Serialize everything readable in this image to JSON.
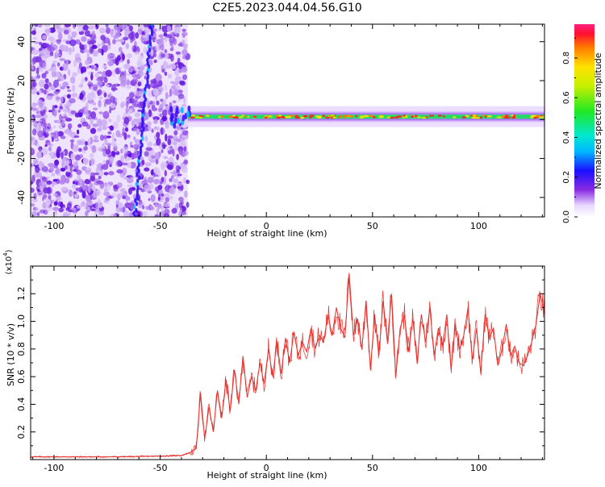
{
  "title": "C2E5.2023.044.04.56.G10",
  "top_chart": {
    "xlabel": "Height of straight line (km)",
    "ylabel": "Frequency (Hz)",
    "xticks": [
      "-100",
      "-50",
      "0",
      "50",
      "100"
    ],
    "yticks": [
      "40",
      "20",
      "0",
      "-20",
      "-40"
    ],
    "colorbar_label": "Normalized spectral amplitude",
    "colorbar_ticks": [
      "0.0",
      "0.2",
      "0.4",
      "0.6",
      "0.8"
    ]
  },
  "bottom_chart": {
    "xlabel": "Height of straight line (km)",
    "ylabel": "SNR (10 * v/v)",
    "multiplier": "(x10",
    "multiplier_exp": "4",
    "multiplier_close": ")",
    "xticks": [
      "-100",
      "-50",
      "0",
      "50",
      "100"
    ],
    "yticks": [
      "1.2",
      "1.0",
      "0.8",
      "0.6",
      "0.4",
      "0.2"
    ]
  },
  "chart_data": [
    {
      "type": "heatmap",
      "title": "C2E5.2023.044.04.56.G10",
      "xlabel": "Height of straight line (km)",
      "ylabel": "Frequency (Hz)",
      "xlim": [
        -111,
        131
      ],
      "ylim": [
        -50,
        49
      ],
      "colorbar": {
        "label": "Normalized spectral amplitude",
        "range": [
          0.0,
          0.97
        ]
      },
      "description_points": {
        "noise_region_x": [
          -111,
          -37
        ],
        "band_x": [
          -37,
          131
        ],
        "band_center_freq_hz": 1.5,
        "band_halfwidth_hz": 3
      }
    },
    {
      "type": "line",
      "xlabel": "Height of straight line (km)",
      "ylabel": "SNR (10 * v/v)",
      "xlim": [
        -111,
        131
      ],
      "ylim": [
        0,
        1.4
      ],
      "y_scale_note": "x10^4",
      "series": [
        {
          "color": "#e8302c",
          "x": [
            -111,
            -90,
            -70,
            -50,
            -40,
            -36,
            -33,
            -31,
            -29,
            -27,
            -25,
            -23,
            -21,
            -19,
            -17,
            -15,
            -13,
            -11,
            -9,
            -7,
            -5,
            -3,
            -1,
            1,
            3,
            5,
            7,
            9,
            11,
            13,
            15,
            17,
            19,
            21,
            23,
            25,
            27,
            29,
            31,
            33,
            35,
            37,
            39,
            41,
            43,
            45,
            47,
            49,
            51,
            53,
            55,
            57,
            59,
            61,
            63,
            65,
            67,
            69,
            71,
            73,
            75,
            77,
            79,
            81,
            83,
            85,
            87,
            89,
            91,
            93,
            95,
            97,
            99,
            101,
            103,
            105,
            107,
            109,
            111,
            113,
            115,
            117,
            119,
            121,
            123,
            125,
            127,
            129,
            131
          ],
          "values": [
            0.02,
            0.02,
            0.02,
            0.025,
            0.03,
            0.05,
            0.08,
            0.48,
            0.15,
            0.38,
            0.2,
            0.5,
            0.3,
            0.58,
            0.35,
            0.65,
            0.4,
            0.75,
            0.45,
            0.6,
            0.5,
            0.7,
            0.55,
            0.8,
            0.6,
            0.85,
            0.62,
            0.88,
            0.7,
            0.92,
            0.75,
            0.85,
            0.78,
            0.95,
            0.8,
            0.9,
            0.85,
            1.05,
            0.9,
            1.1,
            0.95,
            0.88,
            1.35,
            0.9,
            1.02,
            0.8,
            1.15,
            0.65,
            1.05,
            0.75,
            1.15,
            0.85,
            1.2,
            0.6,
            0.95,
            1.05,
            0.78,
            1.02,
            0.7,
            1.05,
            0.85,
            1.1,
            0.75,
            0.95,
            0.82,
            1.05,
            0.65,
            0.98,
            0.8,
            0.9,
            1.1,
            0.72,
            0.95,
            0.62,
            1.05,
            0.88,
            0.95,
            0.68,
            0.8,
            0.98,
            0.75,
            0.82,
            0.7,
            0.68,
            0.75,
            0.85,
            0.98,
            1.2,
            1.05
          ]
        }
      ]
    }
  ]
}
